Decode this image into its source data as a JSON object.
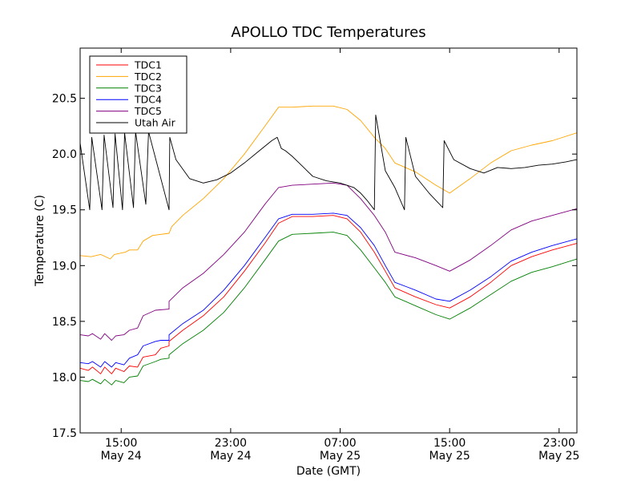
{
  "chart_data": {
    "type": "line",
    "title": "APOLLO TDC Temperatures",
    "xlabel": "Date (GMT)",
    "ylabel": "Temperature (C)",
    "x_unit": "hours since May 24 00:00 GMT",
    "xlim": [
      12.0,
      48.3
    ],
    "ylim": [
      17.5,
      20.95
    ],
    "grid": false,
    "legend_position": "top-left",
    "x_ticks": [
      {
        "value": 15,
        "time": "15:00",
        "date": "May 24"
      },
      {
        "value": 23,
        "time": "23:00",
        "date": "May 24"
      },
      {
        "value": 31,
        "time": "07:00",
        "date": "May 25"
      },
      {
        "value": 39,
        "time": "15:00",
        "date": "May 25"
      },
      {
        "value": 47,
        "time": "23:00",
        "date": "May 25"
      }
    ],
    "y_ticks": [
      {
        "value": 17.5,
        "label": "17.5"
      },
      {
        "value": 18.0,
        "label": "18.0"
      },
      {
        "value": 18.5,
        "label": "18.5"
      },
      {
        "value": 19.0,
        "label": "19.0"
      },
      {
        "value": 19.5,
        "label": "19.5"
      },
      {
        "value": 20.0,
        "label": "20.0"
      },
      {
        "value": 20.5,
        "label": "20.5"
      }
    ],
    "series": [
      {
        "name": "TDC1",
        "color": "#ff0000",
        "points": [
          [
            12.0,
            18.08
          ],
          [
            12.6,
            18.06
          ],
          [
            12.9,
            18.09
          ],
          [
            13.5,
            18.03
          ],
          [
            13.8,
            18.09
          ],
          [
            14.3,
            18.03
          ],
          [
            14.6,
            18.08
          ],
          [
            15.2,
            18.05
          ],
          [
            15.6,
            18.1
          ],
          [
            16.2,
            18.09
          ],
          [
            16.6,
            18.18
          ],
          [
            17.5,
            18.2
          ],
          [
            17.9,
            18.26
          ],
          [
            18.5,
            18.28
          ],
          [
            18.5,
            18.32
          ],
          [
            19.5,
            18.42
          ],
          [
            21.0,
            18.55
          ],
          [
            22.5,
            18.72
          ],
          [
            24.0,
            18.95
          ],
          [
            25.5,
            19.2
          ],
          [
            26.5,
            19.38
          ],
          [
            27.5,
            19.44
          ],
          [
            29.0,
            19.44
          ],
          [
            30.5,
            19.45
          ],
          [
            31.5,
            19.42
          ],
          [
            32.5,
            19.3
          ],
          [
            33.5,
            19.12
          ],
          [
            34.3,
            18.95
          ],
          [
            35.0,
            18.8
          ],
          [
            36.5,
            18.72
          ],
          [
            38.0,
            18.65
          ],
          [
            39.0,
            18.62
          ],
          [
            40.5,
            18.72
          ],
          [
            42.0,
            18.85
          ],
          [
            43.5,
            19.0
          ],
          [
            45.0,
            19.08
          ],
          [
            46.5,
            19.14
          ],
          [
            48.3,
            19.2
          ]
        ]
      },
      {
        "name": "TDC2",
        "color": "#ffa500",
        "points": [
          [
            12.0,
            19.09
          ],
          [
            12.8,
            19.08
          ],
          [
            13.5,
            19.1
          ],
          [
            14.2,
            19.06
          ],
          [
            14.5,
            19.1
          ],
          [
            15.3,
            19.12
          ],
          [
            15.6,
            19.14
          ],
          [
            16.2,
            19.14
          ],
          [
            16.6,
            19.22
          ],
          [
            17.3,
            19.27
          ],
          [
            18.5,
            19.29
          ],
          [
            18.7,
            19.35
          ],
          [
            19.5,
            19.45
          ],
          [
            21.0,
            19.6
          ],
          [
            22.5,
            19.78
          ],
          [
            24.0,
            20.0
          ],
          [
            25.5,
            20.25
          ],
          [
            26.5,
            20.42
          ],
          [
            27.5,
            20.42
          ],
          [
            29.0,
            20.43
          ],
          [
            30.5,
            20.43
          ],
          [
            31.5,
            20.4
          ],
          [
            32.5,
            20.3
          ],
          [
            33.5,
            20.15
          ],
          [
            34.3,
            20.05
          ],
          [
            35.0,
            19.92
          ],
          [
            36.5,
            19.84
          ],
          [
            38.0,
            19.72
          ],
          [
            39.0,
            19.65
          ],
          [
            40.5,
            19.78
          ],
          [
            42.0,
            19.92
          ],
          [
            43.5,
            20.03
          ],
          [
            45.0,
            20.08
          ],
          [
            46.5,
            20.12
          ],
          [
            48.3,
            20.19
          ]
        ]
      },
      {
        "name": "TDC3",
        "color": "#008000",
        "points": [
          [
            12.0,
            17.97
          ],
          [
            12.6,
            17.96
          ],
          [
            12.9,
            17.98
          ],
          [
            13.5,
            17.94
          ],
          [
            13.8,
            17.98
          ],
          [
            14.3,
            17.93
          ],
          [
            14.6,
            17.97
          ],
          [
            15.2,
            17.95
          ],
          [
            15.6,
            18.0
          ],
          [
            16.2,
            18.01
          ],
          [
            16.6,
            18.1
          ],
          [
            17.5,
            18.14
          ],
          [
            17.9,
            18.16
          ],
          [
            18.5,
            18.17
          ],
          [
            18.5,
            18.2
          ],
          [
            19.5,
            18.3
          ],
          [
            21.0,
            18.42
          ],
          [
            22.5,
            18.58
          ],
          [
            24.0,
            18.8
          ],
          [
            25.5,
            19.05
          ],
          [
            26.5,
            19.22
          ],
          [
            27.5,
            19.28
          ],
          [
            29.0,
            19.29
          ],
          [
            30.5,
            19.3
          ],
          [
            31.5,
            19.27
          ],
          [
            32.5,
            19.14
          ],
          [
            33.5,
            18.98
          ],
          [
            34.3,
            18.85
          ],
          [
            35.0,
            18.72
          ],
          [
            36.5,
            18.64
          ],
          [
            38.0,
            18.56
          ],
          [
            39.0,
            18.52
          ],
          [
            40.5,
            18.62
          ],
          [
            42.0,
            18.74
          ],
          [
            43.5,
            18.86
          ],
          [
            45.0,
            18.94
          ],
          [
            46.5,
            18.99
          ],
          [
            48.3,
            19.06
          ]
        ]
      },
      {
        "name": "TDC4",
        "color": "#0000ff",
        "points": [
          [
            12.0,
            18.13
          ],
          [
            12.6,
            18.12
          ],
          [
            12.9,
            18.14
          ],
          [
            13.5,
            18.09
          ],
          [
            13.8,
            18.14
          ],
          [
            14.3,
            18.09
          ],
          [
            14.6,
            18.13
          ],
          [
            15.2,
            18.11
          ],
          [
            15.6,
            18.17
          ],
          [
            16.2,
            18.2
          ],
          [
            16.6,
            18.28
          ],
          [
            17.5,
            18.32
          ],
          [
            17.9,
            18.33
          ],
          [
            18.5,
            18.33
          ],
          [
            18.5,
            18.38
          ],
          [
            19.5,
            18.48
          ],
          [
            21.0,
            18.6
          ],
          [
            22.5,
            18.78
          ],
          [
            24.0,
            19.0
          ],
          [
            25.5,
            19.25
          ],
          [
            26.5,
            19.42
          ],
          [
            27.5,
            19.46
          ],
          [
            29.0,
            19.46
          ],
          [
            30.5,
            19.47
          ],
          [
            31.5,
            19.45
          ],
          [
            32.5,
            19.34
          ],
          [
            33.5,
            19.18
          ],
          [
            34.3,
            19.0
          ],
          [
            35.0,
            18.85
          ],
          [
            36.5,
            18.78
          ],
          [
            38.0,
            18.7
          ],
          [
            39.0,
            18.68
          ],
          [
            40.5,
            18.78
          ],
          [
            42.0,
            18.9
          ],
          [
            43.5,
            19.04
          ],
          [
            45.0,
            19.12
          ],
          [
            46.5,
            19.18
          ],
          [
            48.3,
            19.24
          ]
        ]
      },
      {
        "name": "TDC5",
        "color": "#800080",
        "points": [
          [
            12.0,
            18.38
          ],
          [
            12.6,
            18.37
          ],
          [
            12.9,
            18.39
          ],
          [
            13.5,
            18.34
          ],
          [
            13.8,
            18.39
          ],
          [
            14.3,
            18.33
          ],
          [
            14.6,
            18.37
          ],
          [
            15.2,
            18.38
          ],
          [
            15.6,
            18.42
          ],
          [
            16.2,
            18.44
          ],
          [
            16.6,
            18.55
          ],
          [
            17.5,
            18.6
          ],
          [
            18.5,
            18.61
          ],
          [
            18.5,
            18.68
          ],
          [
            19.5,
            18.8
          ],
          [
            21.0,
            18.93
          ],
          [
            22.5,
            19.1
          ],
          [
            24.0,
            19.3
          ],
          [
            25.5,
            19.55
          ],
          [
            26.5,
            19.7
          ],
          [
            27.5,
            19.72
          ],
          [
            29.0,
            19.73
          ],
          [
            30.5,
            19.74
          ],
          [
            31.5,
            19.72
          ],
          [
            32.5,
            19.6
          ],
          [
            33.5,
            19.45
          ],
          [
            34.3,
            19.3
          ],
          [
            35.0,
            19.12
          ],
          [
            36.5,
            19.07
          ],
          [
            38.0,
            19.0
          ],
          [
            39.0,
            18.95
          ],
          [
            40.5,
            19.05
          ],
          [
            42.0,
            19.18
          ],
          [
            43.5,
            19.32
          ],
          [
            45.0,
            19.4
          ],
          [
            46.5,
            19.45
          ],
          [
            48.3,
            19.51
          ]
        ]
      },
      {
        "name": "Utah Air",
        "color": "#000000",
        "points": [
          [
            12.0,
            20.1
          ],
          [
            12.7,
            19.5
          ],
          [
            12.85,
            20.15
          ],
          [
            13.6,
            19.5
          ],
          [
            13.75,
            20.17
          ],
          [
            14.4,
            19.52
          ],
          [
            14.55,
            20.18
          ],
          [
            15.1,
            19.5
          ],
          [
            15.25,
            20.19
          ],
          [
            15.9,
            19.52
          ],
          [
            16.05,
            20.2
          ],
          [
            16.8,
            19.55
          ],
          [
            17.0,
            20.2
          ],
          [
            18.5,
            19.5
          ],
          [
            18.55,
            20.15
          ],
          [
            19.0,
            19.95
          ],
          [
            20.0,
            19.78
          ],
          [
            21.0,
            19.74
          ],
          [
            22.0,
            19.77
          ],
          [
            23.0,
            19.83
          ],
          [
            24.0,
            19.92
          ],
          [
            25.0,
            20.02
          ],
          [
            26.0,
            20.12
          ],
          [
            26.4,
            20.15
          ],
          [
            26.7,
            20.05
          ],
          [
            27.0,
            20.03
          ],
          [
            27.5,
            19.98
          ],
          [
            28.0,
            19.92
          ],
          [
            29.0,
            19.8
          ],
          [
            30.0,
            19.76
          ],
          [
            31.0,
            19.74
          ],
          [
            32.0,
            19.7
          ],
          [
            32.5,
            19.65
          ],
          [
            33.0,
            19.58
          ],
          [
            33.5,
            19.5
          ],
          [
            33.6,
            20.35
          ],
          [
            34.3,
            19.85
          ],
          [
            35.0,
            19.7
          ],
          [
            35.7,
            19.5
          ],
          [
            35.8,
            20.15
          ],
          [
            36.5,
            19.8
          ],
          [
            37.5,
            19.65
          ],
          [
            38.5,
            19.52
          ],
          [
            38.6,
            20.12
          ],
          [
            39.3,
            19.95
          ],
          [
            40.5,
            19.87
          ],
          [
            41.5,
            19.83
          ],
          [
            42.5,
            19.88
          ],
          [
            43.5,
            19.87
          ],
          [
            44.5,
            19.88
          ],
          [
            45.5,
            19.9
          ],
          [
            46.5,
            19.91
          ],
          [
            47.5,
            19.93
          ],
          [
            48.3,
            19.95
          ]
        ]
      }
    ]
  }
}
